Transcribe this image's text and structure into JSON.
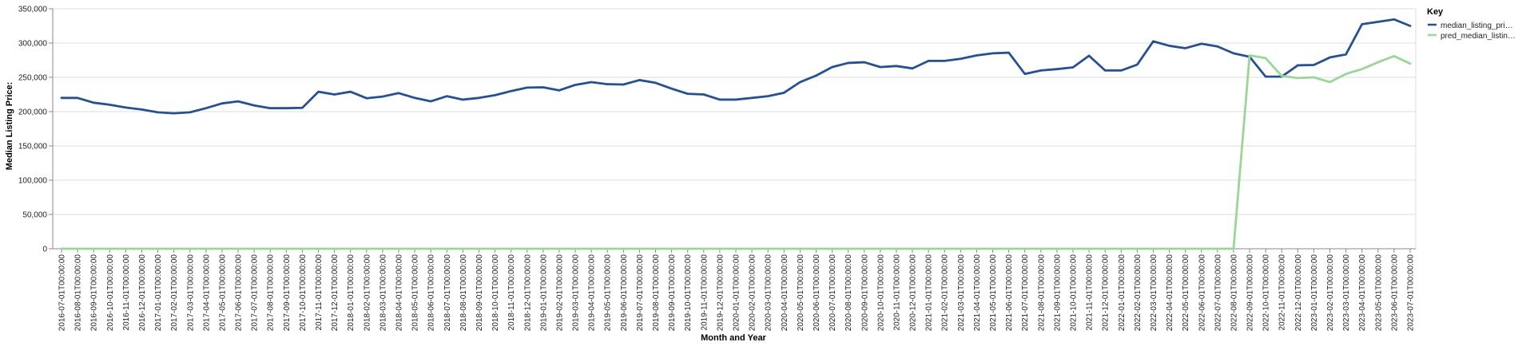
{
  "chart_data": {
    "type": "line",
    "xlabel": "Month and Year",
    "ylabel": "Median Listing Price:",
    "ylim": [
      0,
      350000
    ],
    "y_ticks": [
      "0",
      "50,000",
      "100,000",
      "150,000",
      "200,000",
      "250,000",
      "300,000",
      "350,000"
    ],
    "grid": true,
    "legend": {
      "title": "Key",
      "placement": "top-right",
      "labels": [
        "median_listing_pri…",
        "pred_median_listin…"
      ]
    },
    "x": [
      "2016-07-01T00:00:00",
      "2016-08-01T00:00:00",
      "2016-09-01T00:00:00",
      "2016-10-01T00:00:00",
      "2016-11-01T00:00:00",
      "2016-12-01T00:00:00",
      "2017-01-01T00:00:00",
      "2017-02-01T00:00:00",
      "2017-03-01T00:00:00",
      "2017-04-01T00:00:00",
      "2017-05-01T00:00:00",
      "2017-06-01T00:00:00",
      "2017-07-01T00:00:00",
      "2017-08-01T00:00:00",
      "2017-09-01T00:00:00",
      "2017-10-01T00:00:00",
      "2017-11-01T00:00:00",
      "2017-12-01T00:00:00",
      "2018-01-01T00:00:00",
      "2018-02-01T00:00:00",
      "2018-03-01T00:00:00",
      "2018-04-01T00:00:00",
      "2018-05-01T00:00:00",
      "2018-06-01T00:00:00",
      "2018-07-01T00:00:00",
      "2018-08-01T00:00:00",
      "2018-09-01T00:00:00",
      "2018-10-01T00:00:00",
      "2018-11-01T00:00:00",
      "2018-12-01T00:00:00",
      "2019-01-01T00:00:00",
      "2019-02-01T00:00:00",
      "2019-03-01T00:00:00",
      "2019-04-01T00:00:00",
      "2019-05-01T00:00:00",
      "2019-06-01T00:00:00",
      "2019-07-01T00:00:00",
      "2019-08-01T00:00:00",
      "2019-09-01T00:00:00",
      "2019-10-01T00:00:00",
      "2019-11-01T00:00:00",
      "2019-12-01T00:00:00",
      "2020-01-01T00:00:00",
      "2020-02-01T00:00:00",
      "2020-03-01T00:00:00",
      "2020-04-01T00:00:00",
      "2020-05-01T00:00:00",
      "2020-06-01T00:00:00",
      "2020-07-01T00:00:00",
      "2020-08-01T00:00:00",
      "2020-09-01T00:00:00",
      "2020-10-01T00:00:00",
      "2020-11-01T00:00:00",
      "2020-12-01T00:00:00",
      "2021-01-01T00:00:00",
      "2021-02-01T00:00:00",
      "2021-03-01T00:00:00",
      "2021-04-01T00:00:00",
      "2021-05-01T00:00:00",
      "2021-06-01T00:00:00",
      "2021-07-01T00:00:00",
      "2021-08-01T00:00:00",
      "2021-09-01T00:00:00",
      "2021-10-01T00:00:00",
      "2021-11-01T00:00:00",
      "2021-12-01T00:00:00",
      "2022-01-01T00:00:00",
      "2022-02-01T00:00:00",
      "2022-03-01T00:00:00",
      "2022-04-01T00:00:00",
      "2022-05-01T00:00:00",
      "2022-06-01T00:00:00",
      "2022-07-01T00:00:00",
      "2022-08-01T00:00:00",
      "2022-09-01T00:00:00",
      "2022-10-01T00:00:00",
      "2022-11-01T00:00:00",
      "2022-12-01T00:00:00",
      "2023-01-01T00:00:00",
      "2023-02-01T00:00:00",
      "2023-03-01T00:00:00",
      "2023-04-01T00:00:00",
      "2023-05-01T00:00:00",
      "2023-06-01T00:00:00",
      "2023-07-01T00:00:00"
    ],
    "series": [
      {
        "name": "median_listing_pri…",
        "color": "#24509a",
        "values": [
          220000,
          220000,
          213000,
          210000,
          206000,
          203000,
          199000,
          197500,
          199000,
          205000,
          212000,
          215000,
          209000,
          205000,
          205000,
          205500,
          229000,
          225000,
          229000,
          219500,
          222000,
          227000,
          220000,
          215000,
          222500,
          217500,
          220000,
          224000,
          230000,
          235000,
          235500,
          231000,
          239000,
          243000,
          240000,
          239500,
          246000,
          242000,
          233500,
          226000,
          225000,
          217500,
          217500,
          220000,
          222500,
          227500,
          243000,
          252500,
          265000,
          271000,
          272000,
          265000,
          266500,
          263000,
          274000,
          274000,
          277000,
          282000,
          285000,
          286000,
          255000,
          260000,
          262000,
          264500,
          281500,
          260000,
          260000,
          268500,
          302500,
          296000,
          292500,
          299000,
          295000,
          285000,
          280000,
          251000,
          251000,
          267500,
          268000,
          279000,
          283500,
          327500,
          331000,
          334500,
          325000
        ]
      },
      {
        "name": "pred_median_listin…",
        "color": "#98d894",
        "values": [
          0,
          0,
          0,
          0,
          0,
          0,
          0,
          0,
          0,
          0,
          0,
          0,
          0,
          0,
          0,
          0,
          0,
          0,
          0,
          0,
          0,
          0,
          0,
          0,
          0,
          0,
          0,
          0,
          0,
          0,
          0,
          0,
          0,
          0,
          0,
          0,
          0,
          0,
          0,
          0,
          0,
          0,
          0,
          0,
          0,
          0,
          0,
          0,
          0,
          0,
          0,
          0,
          0,
          0,
          0,
          0,
          0,
          0,
          0,
          0,
          0,
          0,
          0,
          0,
          0,
          0,
          0,
          0,
          0,
          0,
          0,
          0,
          0,
          0,
          282000,
          278000,
          252000,
          249000,
          250000,
          243000,
          255000,
          262000,
          272000,
          281000,
          270000
        ]
      }
    ]
  }
}
